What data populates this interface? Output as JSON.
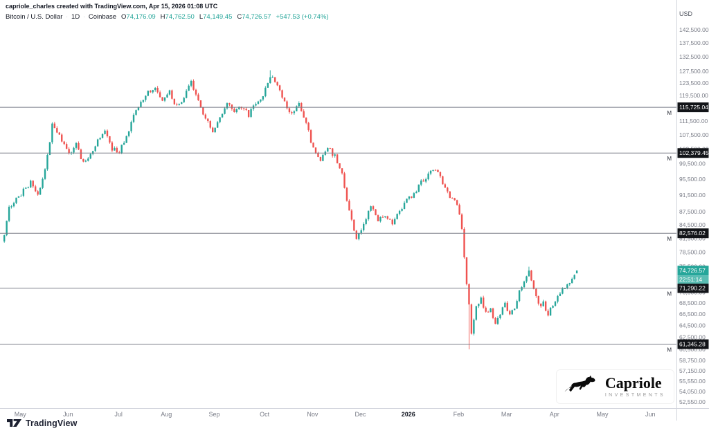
{
  "header": {
    "attribution": "capriole_charles created with TradingView.com, Apr 15, 2026 01:08 UTC",
    "symbol": "Bitcoin / U.S. Dollar",
    "separator": "·",
    "interval": "1D",
    "exchange": "Coinbase",
    "ohlc_items": [
      {
        "k": "O",
        "v": "74,176.09"
      },
      {
        "k": "H",
        "v": "74,762.50"
      },
      {
        "k": "L",
        "v": "74,149.45"
      },
      {
        "k": "C",
        "v": "74,726.57"
      }
    ],
    "change": "+547.53 (+0.74%)"
  },
  "price_axis": {
    "currency": "USD",
    "ticks": [
      {
        "v": 142500,
        "label": "142,500.00"
      },
      {
        "v": 137500,
        "label": "137,500.00"
      },
      {
        "v": 132500,
        "label": "132,500.00"
      },
      {
        "v": 127500,
        "label": "127,500.00"
      },
      {
        "v": 123500,
        "label": "123,500.00"
      },
      {
        "v": 119500,
        "label": "119,500.00"
      },
      {
        "v": 111500,
        "label": "111,500.00"
      },
      {
        "v": 107500,
        "label": "107,500.00"
      },
      {
        "v": 103500,
        "label": "103,500.00"
      },
      {
        "v": 99500,
        "label": "99,500.00"
      },
      {
        "v": 95500,
        "label": "95,500.00"
      },
      {
        "v": 91500,
        "label": "91,500.00"
      },
      {
        "v": 87500,
        "label": "87,500.00"
      },
      {
        "v": 84500,
        "label": "84,500.00"
      },
      {
        "v": 81500,
        "label": "81,500.00"
      },
      {
        "v": 78500,
        "label": "78,500.00"
      },
      {
        "v": 75500,
        "label": "75,500.00"
      },
      {
        "v": 72500,
        "label": "72,500.00"
      },
      {
        "v": 70500,
        "label": "70,500.00"
      },
      {
        "v": 68500,
        "label": "68,500.00"
      },
      {
        "v": 66500,
        "label": "66,500.00"
      },
      {
        "v": 64500,
        "label": "64,500.00"
      },
      {
        "v": 62500,
        "label": "62,500.00"
      },
      {
        "v": 60500,
        "label": "60,500.00"
      },
      {
        "v": 58750,
        "label": "58,750.00"
      },
      {
        "v": 57150,
        "label": "57,150.00"
      },
      {
        "v": 55550,
        "label": "55,550.00"
      },
      {
        "v": 54050,
        "label": "54,050.00"
      },
      {
        "v": 52550,
        "label": "52,550.00"
      }
    ],
    "levels": [
      {
        "value": 115725.04,
        "label": "115,725.04",
        "marker": "M"
      },
      {
        "value": 102379.45,
        "label": "102,379.45",
        "marker": "M"
      },
      {
        "value": 82576.02,
        "label": "82,576.02",
        "marker": "M"
      },
      {
        "value": 71290.22,
        "label": "71,290.22",
        "marker": "M"
      },
      {
        "value": 61345.28,
        "label": "61,345.28",
        "marker": "M"
      }
    ],
    "last_price": {
      "value": 74726.57,
      "label": "74,726.57",
      "countdown": "22:51:14"
    }
  },
  "time_axis": {
    "months": [
      {
        "label": "May",
        "i": 7
      },
      {
        "label": "Jun",
        "i": 27
      },
      {
        "label": "Jul",
        "i": 48
      },
      {
        "label": "Aug",
        "i": 68
      },
      {
        "label": "Sep",
        "i": 88
      },
      {
        "label": "Oct",
        "i": 109
      },
      {
        "label": "Nov",
        "i": 129
      },
      {
        "label": "Dec",
        "i": 149
      },
      {
        "label": "2026",
        "i": 169,
        "bold": true
      },
      {
        "label": "Feb",
        "i": 190
      },
      {
        "label": "Mar",
        "i": 210
      },
      {
        "label": "Apr",
        "i": 230
      },
      {
        "label": "May",
        "i": 250
      },
      {
        "label": "Jun",
        "i": 270
      }
    ]
  },
  "chart_data": {
    "type": "candlestick",
    "title": "Bitcoin / U.S. Dollar",
    "exchange": "Coinbase",
    "interval": "1D",
    "scale": "log",
    "price_range": [
      51500,
      152000
    ],
    "count": 240,
    "ohlc": {
      "open": 74176.09,
      "high": 74762.5,
      "low": 74149.45,
      "close": 74726.57,
      "change": 547.53,
      "change_pct": 0.74
    },
    "levels": [
      115725.04,
      102379.45,
      82576.02,
      71290.22,
      61345.28
    ],
    "anchors": [
      [
        0,
        82000
      ],
      [
        2,
        88500
      ],
      [
        5,
        90500
      ],
      [
        8,
        92500
      ],
      [
        11,
        94500
      ],
      [
        14,
        91500
      ],
      [
        17,
        97500
      ],
      [
        20,
        110500
      ],
      [
        23,
        107000
      ],
      [
        27,
        102500
      ],
      [
        30,
        104500
      ],
      [
        33,
        99800
      ],
      [
        36,
        101500
      ],
      [
        39,
        105500
      ],
      [
        42,
        108500
      ],
      [
        45,
        103500
      ],
      [
        48,
        102800
      ],
      [
        51,
        107500
      ],
      [
        54,
        113000
      ],
      [
        57,
        117500
      ],
      [
        60,
        120500
      ],
      [
        63,
        122000
      ],
      [
        66,
        118000
      ],
      [
        69,
        120500
      ],
      [
        72,
        115800
      ],
      [
        75,
        118500
      ],
      [
        78,
        123500
      ],
      [
        81,
        117500
      ],
      [
        84,
        112000
      ],
      [
        87,
        108500
      ],
      [
        90,
        112000
      ],
      [
        93,
        116500
      ],
      [
        96,
        114500
      ],
      [
        99,
        116000
      ],
      [
        102,
        113500
      ],
      [
        105,
        116500
      ],
      [
        108,
        119500
      ],
      [
        111,
        126000
      ],
      [
        114,
        123000
      ],
      [
        117,
        117000
      ],
      [
        120,
        114000
      ],
      [
        123,
        116500
      ],
      [
        126,
        110500
      ],
      [
        129,
        103500
      ],
      [
        132,
        99800
      ],
      [
        135,
        104000
      ],
      [
        138,
        101500
      ],
      [
        141,
        96500
      ],
      [
        144,
        87500
      ],
      [
        147,
        81500
      ],
      [
        150,
        84500
      ],
      [
        153,
        88500
      ],
      [
        156,
        85500
      ],
      [
        159,
        87000
      ],
      [
        162,
        84800
      ],
      [
        165,
        87500
      ],
      [
        168,
        90000
      ],
      [
        171,
        91500
      ],
      [
        174,
        94500
      ],
      [
        177,
        96500
      ],
      [
        180,
        98000
      ],
      [
        183,
        94500
      ],
      [
        186,
        91000
      ],
      [
        189,
        89500
      ],
      [
        191,
        83500
      ],
      [
        193,
        72500
      ],
      [
        195,
        63500
      ],
      [
        197,
        67500
      ],
      [
        199,
        69500
      ],
      [
        201,
        66500
      ],
      [
        203,
        67500
      ],
      [
        205,
        64800
      ],
      [
        207,
        66500
      ],
      [
        209,
        68500
      ],
      [
        211,
        66000
      ],
      [
        213,
        67500
      ],
      [
        215,
        70500
      ],
      [
        217,
        72800
      ],
      [
        219,
        74300
      ],
      [
        221,
        71000
      ],
      [
        223,
        68000
      ],
      [
        225,
        68500
      ],
      [
        227,
        66500
      ],
      [
        229,
        68000
      ],
      [
        231,
        69500
      ],
      [
        233,
        71000
      ],
      [
        235,
        72000
      ],
      [
        237,
        73200
      ],
      [
        239,
        74726.57
      ]
    ],
    "forced": {
      "111": {
        "high": 127800
      },
      "194": {
        "low": 60500
      },
      "219": {
        "high": 75500
      }
    },
    "last_candle": {
      "open": 74176.09,
      "high": 74762.5,
      "low": 74149.45,
      "close": 74726.57
    }
  },
  "colors": {
    "up": "#26a69a",
    "down": "#ef5350",
    "level_line": "#787b86",
    "level_label_bg": "#121418",
    "last_price_bg": "#26a69a",
    "countdown_bg": "#5abdb3",
    "border": "#d1d4dc"
  },
  "footer": {
    "tradingview_label": "TradingView"
  },
  "branding": {
    "name": "Capriole",
    "subtitle": "INVESTMENTS"
  }
}
